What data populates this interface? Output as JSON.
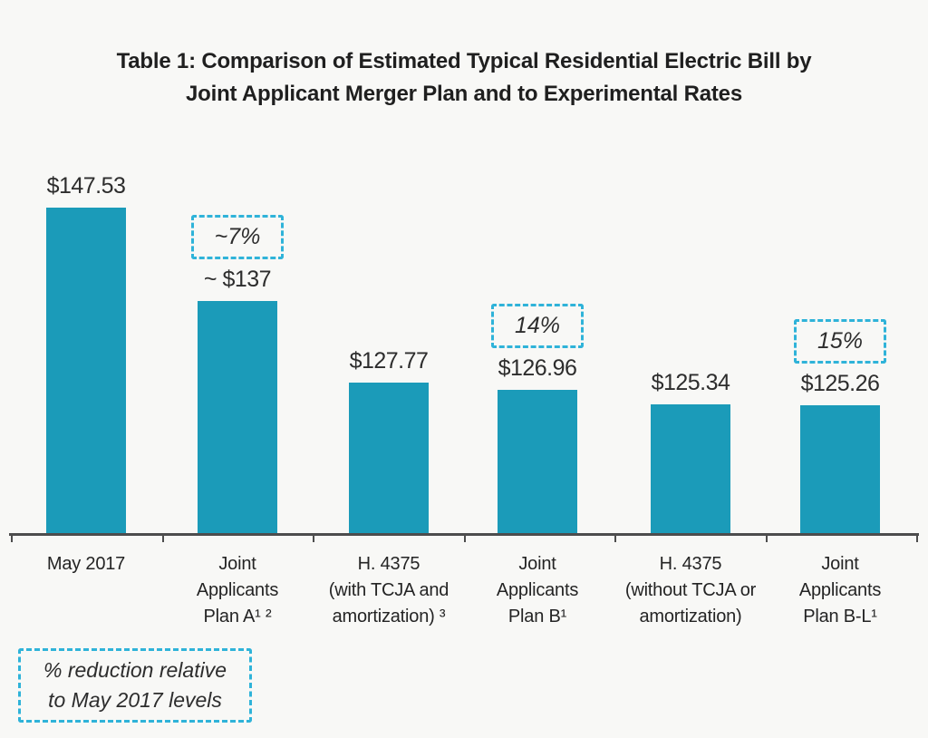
{
  "title": "Table 1: Comparison of Estimated Typical Residential Electric Bill by\nJoint Applicant Merger Plan and to Experimental Rates",
  "chart_data": {
    "type": "bar",
    "title": "Table 1: Comparison of Estimated Typical Residential Electric Bill by Joint Applicant Merger Plan and to Experimental Rates",
    "categories": [
      "May 2017",
      "Joint\nApplicants\nPlan A¹ ²",
      "H. 4375\n(with TCJA and\namortization) ³",
      "Joint\nApplicants\nPlan B¹",
      "H. 4375\n(without TCJA or\namortization)",
      "Joint\nApplicants\nPlan B-L¹"
    ],
    "values": [
      147.53,
      137,
      127.77,
      126.96,
      125.34,
      125.26
    ],
    "value_labels": [
      "$147.53",
      "~ $137",
      "$127.77",
      "$126.96",
      "$125.34",
      "$125.26"
    ],
    "reduction_labels": [
      "",
      "~7%",
      "",
      "14%",
      "",
      "15%"
    ],
    "legend_note": "% reduction relative\nto May 2017 levels",
    "xlabel": "",
    "ylabel": "",
    "y_axis_visible": false,
    "grid": false,
    "annotation_style": "dashed-box"
  },
  "legend": {
    "text": "% reduction relative\nto May 2017 levels"
  },
  "colors": {
    "bar": "#1b9bb9",
    "dashed_border": "#2fb3d9",
    "axis": "#4d4d4d",
    "title_text": "#1f1f1f",
    "label_text": "#262626",
    "background": "#f8f8f6"
  }
}
